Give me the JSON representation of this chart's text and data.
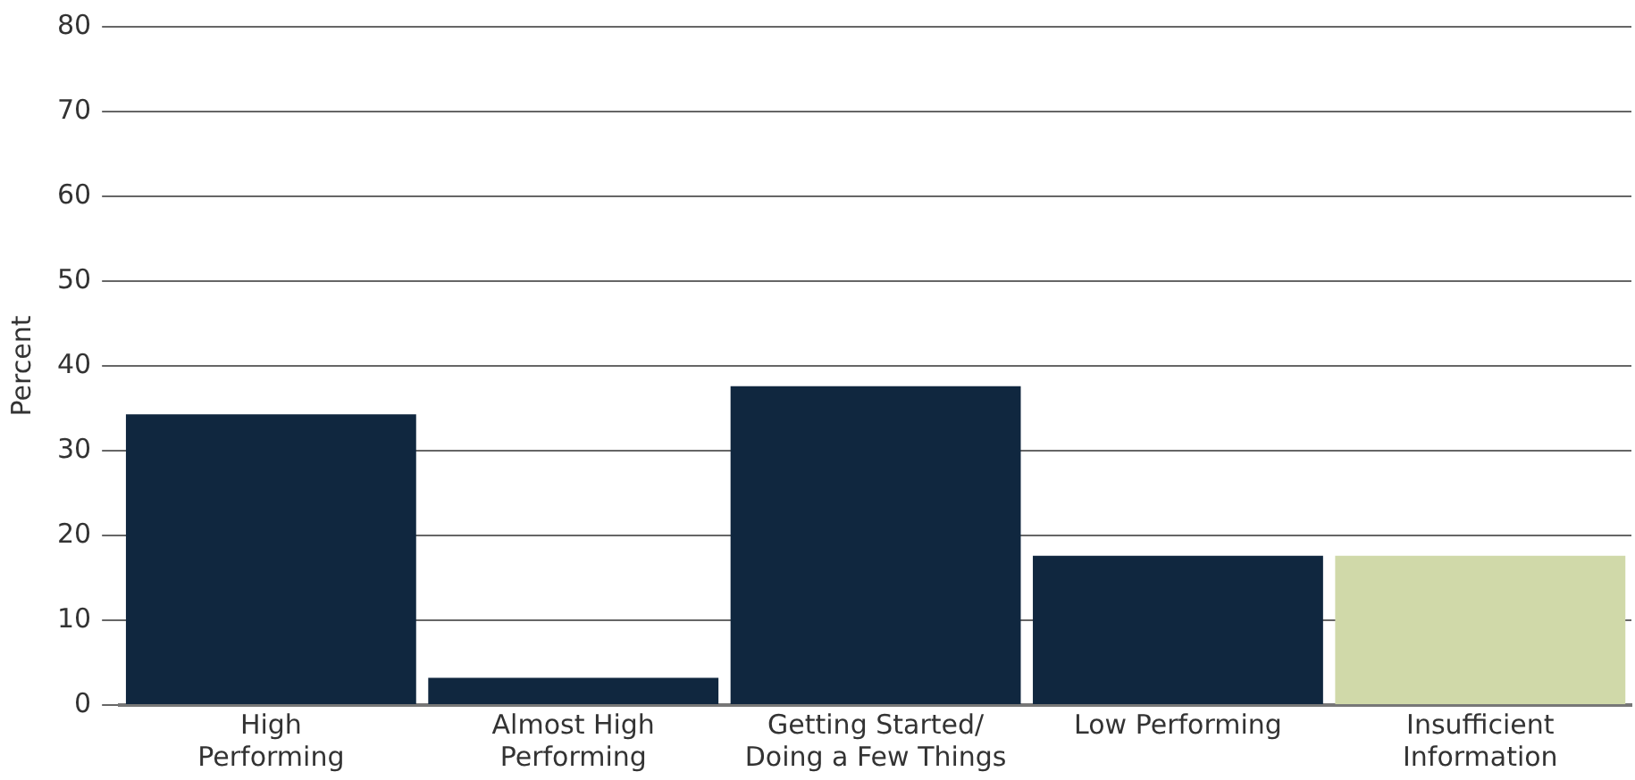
{
  "chart_data": {
    "type": "bar",
    "ylabel": "Percent",
    "categories": [
      "High\nPerforming",
      "Almost High\nPerforming",
      "Getting Started/\nDoing a Few Things",
      "Low Performing",
      "Insufficient\nInformation"
    ],
    "values": [
      34.3,
      3.2,
      37.6,
      17.6,
      17.6
    ],
    "colors": [
      "#10273f",
      "#10273f",
      "#10273f",
      "#10273f",
      "#d0d9a9"
    ],
    "ylim": [
      0,
      80
    ],
    "yticks": [
      0,
      10,
      20,
      30,
      40,
      50,
      60,
      70,
      80
    ],
    "grid": "y",
    "legend": false
  }
}
